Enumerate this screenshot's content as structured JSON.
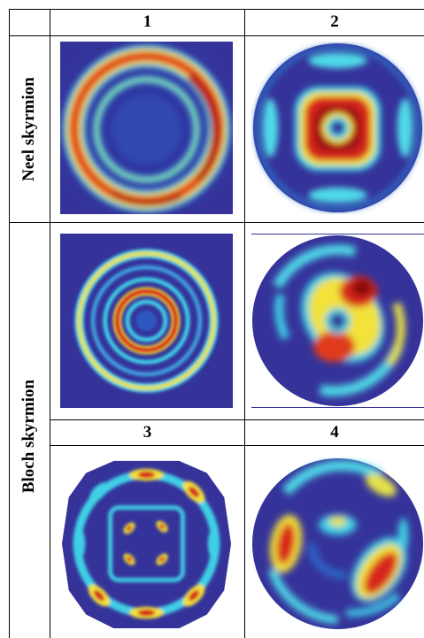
{
  "column_headers": [
    "1",
    "2"
  ],
  "sub_headers": [
    "3",
    "4"
  ],
  "row_labels": [
    "Neel skyrmion",
    "Bloch skyrmion"
  ],
  "colors": {
    "background_blue": "#35339a",
    "cyan": "#3fd0e6",
    "yellow": "#f2e23a",
    "red": "#d7261c",
    "dark_red": "#8a0f10",
    "grid_line": "#000000"
  }
}
